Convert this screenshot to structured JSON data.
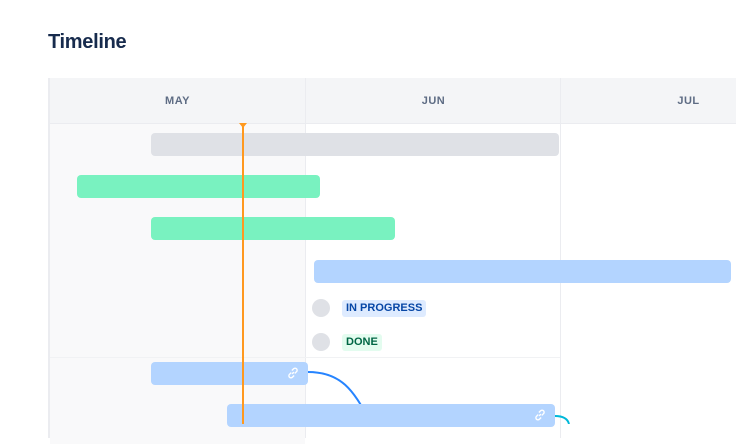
{
  "page": {
    "title": "Timeline"
  },
  "timeline": {
    "months": [
      "MAY",
      "JUN",
      "JUL"
    ],
    "today_color": "#ff991f",
    "bars": [
      {
        "color": "#dfe1e6",
        "linked": false
      },
      {
        "color": "#79f2c0",
        "linked": false
      },
      {
        "color": "#79f2c0",
        "linked": false
      },
      {
        "color": "#b3d4ff",
        "linked": false
      },
      {
        "color": "#b3d4ff",
        "linked": true,
        "icon": "link-icon"
      },
      {
        "color": "#b3d4ff",
        "linked": true,
        "icon": "link-icon"
      }
    ],
    "statuses": [
      {
        "label": "IN PROGRESS",
        "bg": "#deebff",
        "fg": "#0747a6"
      },
      {
        "label": "DONE",
        "bg": "#e3fcef",
        "fg": "#006644"
      }
    ]
  }
}
